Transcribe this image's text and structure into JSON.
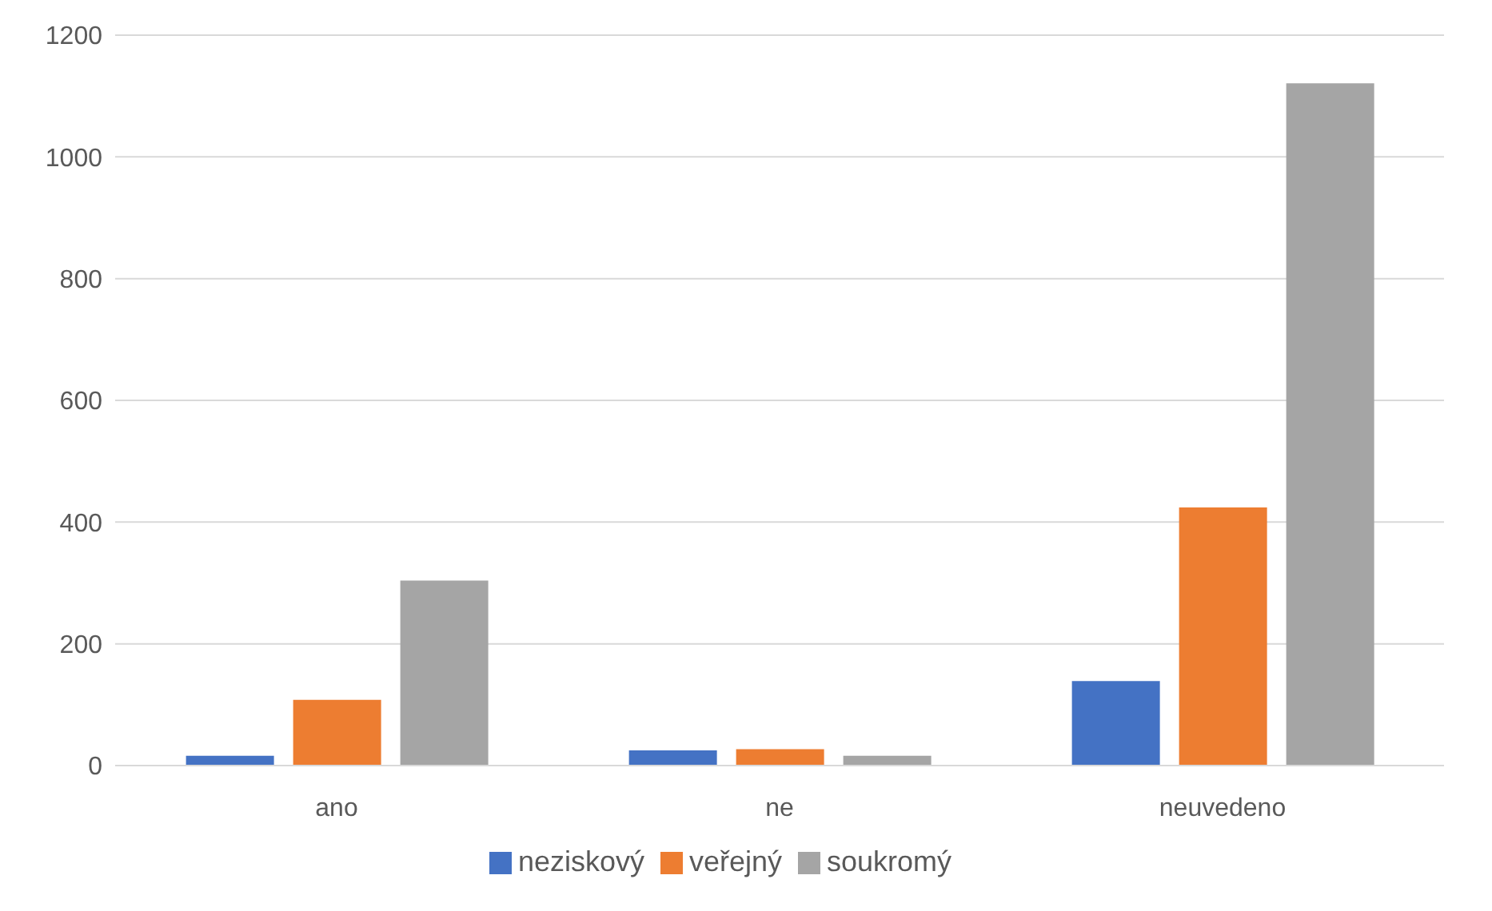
{
  "chart_data": {
    "type": "bar",
    "categories": [
      "ano",
      "ne",
      "neuvedeno"
    ],
    "series": [
      {
        "name": "neziskový",
        "color": "#4472c4",
        "values": [
          16,
          25,
          139
        ]
      },
      {
        "name": "veřejný",
        "color": "#ed7d31",
        "values": [
          108,
          27,
          424
        ]
      },
      {
        "name": "soukromý",
        "color": "#a5a5a5",
        "values": [
          304,
          16,
          1121
        ]
      }
    ],
    "ylim": [
      0,
      1200
    ],
    "yticks": [
      0,
      200,
      400,
      600,
      800,
      1000,
      1200
    ],
    "grid": "y",
    "legend": "bottom"
  }
}
